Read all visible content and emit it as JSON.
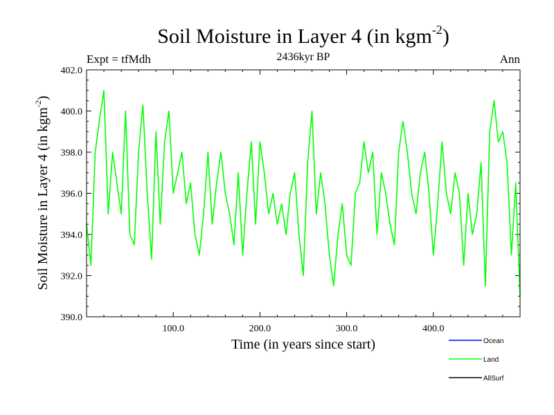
{
  "chart_data": {
    "type": "line",
    "title": "Soil Moisture in Layer 4 (in kgm",
    "title_sup": "-2",
    "title_end": ")",
    "subtitle": "2436kyr BP",
    "left_label": "Expt = tfMdh",
    "right_label": "Ann",
    "xlabel": "Time (in years since start)",
    "ylabel": "Soil Moisture in Layer 4 (in kgm",
    "ylabel_sup": "-2",
    "ylabel_end": ")",
    "xlim": [
      0,
      500
    ],
    "ylim": [
      390.0,
      402.0
    ],
    "x_ticks": [
      100,
      200,
      300,
      400
    ],
    "x_tick_labels": [
      "100.0",
      "200.0",
      "300.0",
      "400.0"
    ],
    "y_ticks": [
      390,
      392,
      394,
      396,
      398,
      400,
      402
    ],
    "y_tick_labels": [
      "390.0",
      "392.0",
      "394.0",
      "396.0",
      "398.0",
      "400.0",
      "402.0"
    ],
    "legend_position": "bottom-right",
    "series": [
      {
        "name": "Ocean",
        "color": "#0000ff",
        "values": []
      },
      {
        "name": "Land",
        "color": "#00ff00",
        "x": [
          0,
          5,
          10,
          15,
          20,
          25,
          30,
          35,
          40,
          45,
          50,
          55,
          60,
          65,
          70,
          75,
          80,
          85,
          90,
          95,
          100,
          105,
          110,
          115,
          120,
          125,
          130,
          135,
          140,
          145,
          150,
          155,
          160,
          165,
          170,
          175,
          180,
          185,
          190,
          195,
          200,
          205,
          210,
          215,
          220,
          225,
          230,
          235,
          240,
          245,
          250,
          255,
          260,
          265,
          270,
          275,
          280,
          285,
          290,
          295,
          300,
          305,
          310,
          315,
          320,
          325,
          330,
          335,
          340,
          345,
          350,
          355,
          360,
          365,
          370,
          375,
          380,
          385,
          390,
          395,
          400,
          405,
          410,
          415,
          420,
          425,
          430,
          435,
          440,
          445,
          450,
          455,
          460,
          465,
          470,
          475,
          480,
          485,
          490,
          495,
          500
        ],
        "values": [
          394.5,
          392.5,
          398.0,
          399.6,
          401.0,
          395.0,
          398.0,
          396.5,
          395.0,
          400.0,
          394.0,
          393.5,
          398.0,
          400.3,
          396.0,
          392.8,
          399.0,
          394.5,
          398.5,
          400.0,
          396.0,
          397.0,
          398.0,
          395.5,
          396.5,
          394.0,
          393.0,
          395.0,
          398.0,
          394.5,
          396.5,
          398.0,
          396.0,
          395.0,
          393.5,
          397.0,
          393.0,
          396.0,
          398.5,
          394.5,
          398.5,
          397.0,
          395.0,
          396.0,
          394.5,
          395.5,
          394.0,
          396.0,
          397.0,
          394.0,
          392.0,
          397.5,
          400.0,
          395.0,
          397.0,
          395.5,
          393.0,
          391.5,
          394.0,
          395.5,
          393.0,
          392.5,
          396.0,
          396.5,
          398.5,
          397.0,
          398.0,
          394.0,
          397.0,
          396.0,
          394.5,
          393.5,
          398.0,
          399.5,
          398.0,
          396.0,
          395.0,
          397.0,
          398.0,
          396.0,
          393.0,
          395.5,
          398.5,
          396.0,
          395.0,
          397.0,
          396.0,
          392.5,
          396.0,
          394.0,
          395.0,
          397.5,
          391.5,
          399.0,
          400.5,
          398.5,
          399.0,
          397.5,
          393.0,
          396.5,
          391.0
        ]
      },
      {
        "name": "AllSurf",
        "color": "#000000",
        "values": []
      }
    ]
  }
}
